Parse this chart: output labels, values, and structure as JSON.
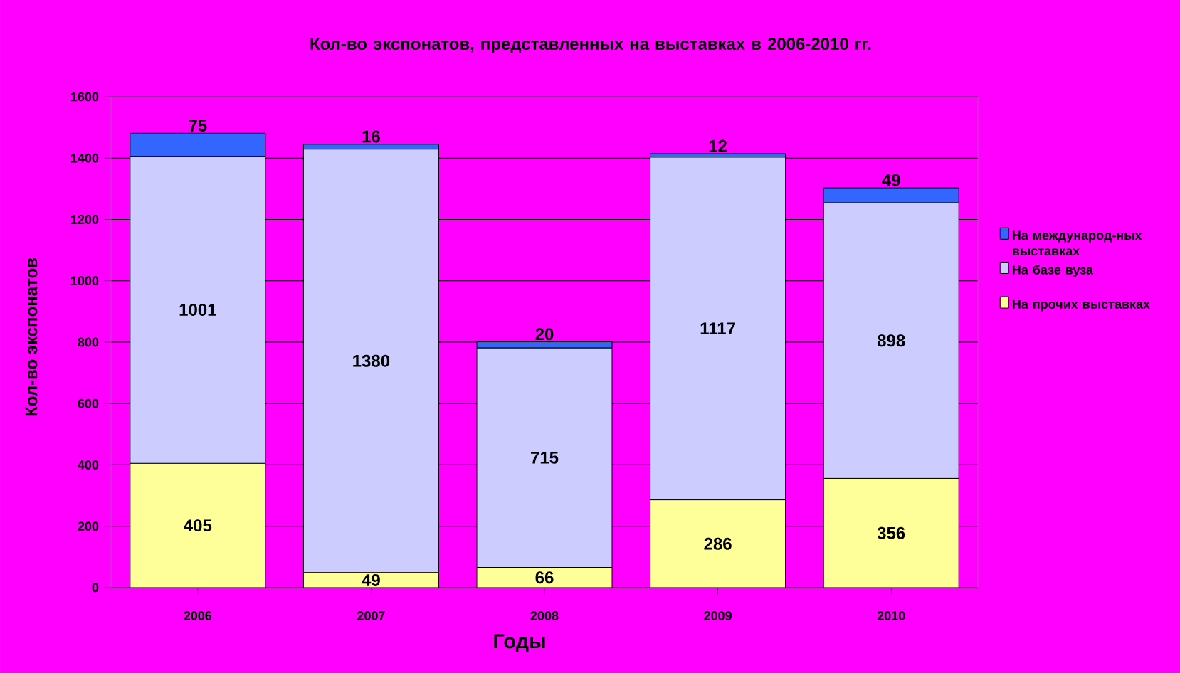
{
  "chart_data": {
    "type": "bar",
    "stacked": true,
    "title": "Кол-во экспонатов, представленных на выставках в 2006-2010 гг.",
    "xlabel": "Годы",
    "ylabel": "Кол-во экспонатов",
    "categories": [
      "2006",
      "2007",
      "2008",
      "2009",
      "2010"
    ],
    "series": [
      {
        "name": "На прочих выставках",
        "color": "#ffff99",
        "values": [
          405,
          49,
          66,
          286,
          356
        ]
      },
      {
        "name": "На базе вуза",
        "color": "#ccccff",
        "values": [
          1001,
          1380,
          715,
          1117,
          898
        ]
      },
      {
        "name": "На международ-ных выставках",
        "color": "#3366ff",
        "values": [
          75,
          16,
          20,
          12,
          49
        ]
      }
    ],
    "ylim": [
      0,
      1600
    ],
    "yticks": [
      0,
      200,
      400,
      600,
      800,
      1000,
      1200,
      1400,
      1600
    ],
    "grid": "y",
    "legend": "right",
    "data_labels": true
  }
}
